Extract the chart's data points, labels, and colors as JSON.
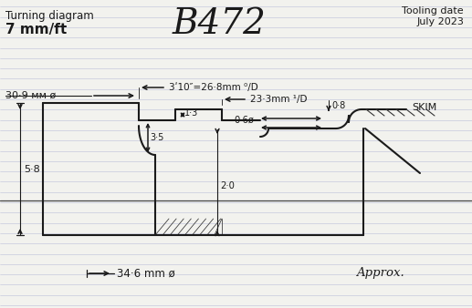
{
  "title": "B472",
  "subtitle_left": "Turning diagram",
  "subtitle_left2": "7 mm/ft",
  "tooling_date_line1": "Tooling date",
  "tooling_date_line2": "July 2023",
  "bottom_label_left": "34·6 mm ø",
  "bottom_label_right": "Approx.",
  "dim1": "3ʹ10″=26·8mm ⁰/D",
  "dim2": "23·3mm ¹/D",
  "dim3": "30·9 мм ø",
  "dim4": "0·8",
  "dim5": "0·6ø",
  "dim6": "1·3",
  "dim7": "3·5",
  "dim8": "5·8",
  "dim9": "2·0",
  "label_skim": "SKIM",
  "bg_color": "#f2f2ee",
  "line_color": "#1a1a1a",
  "ruled_color": "#b8bcd8",
  "sep_color": "#555555"
}
